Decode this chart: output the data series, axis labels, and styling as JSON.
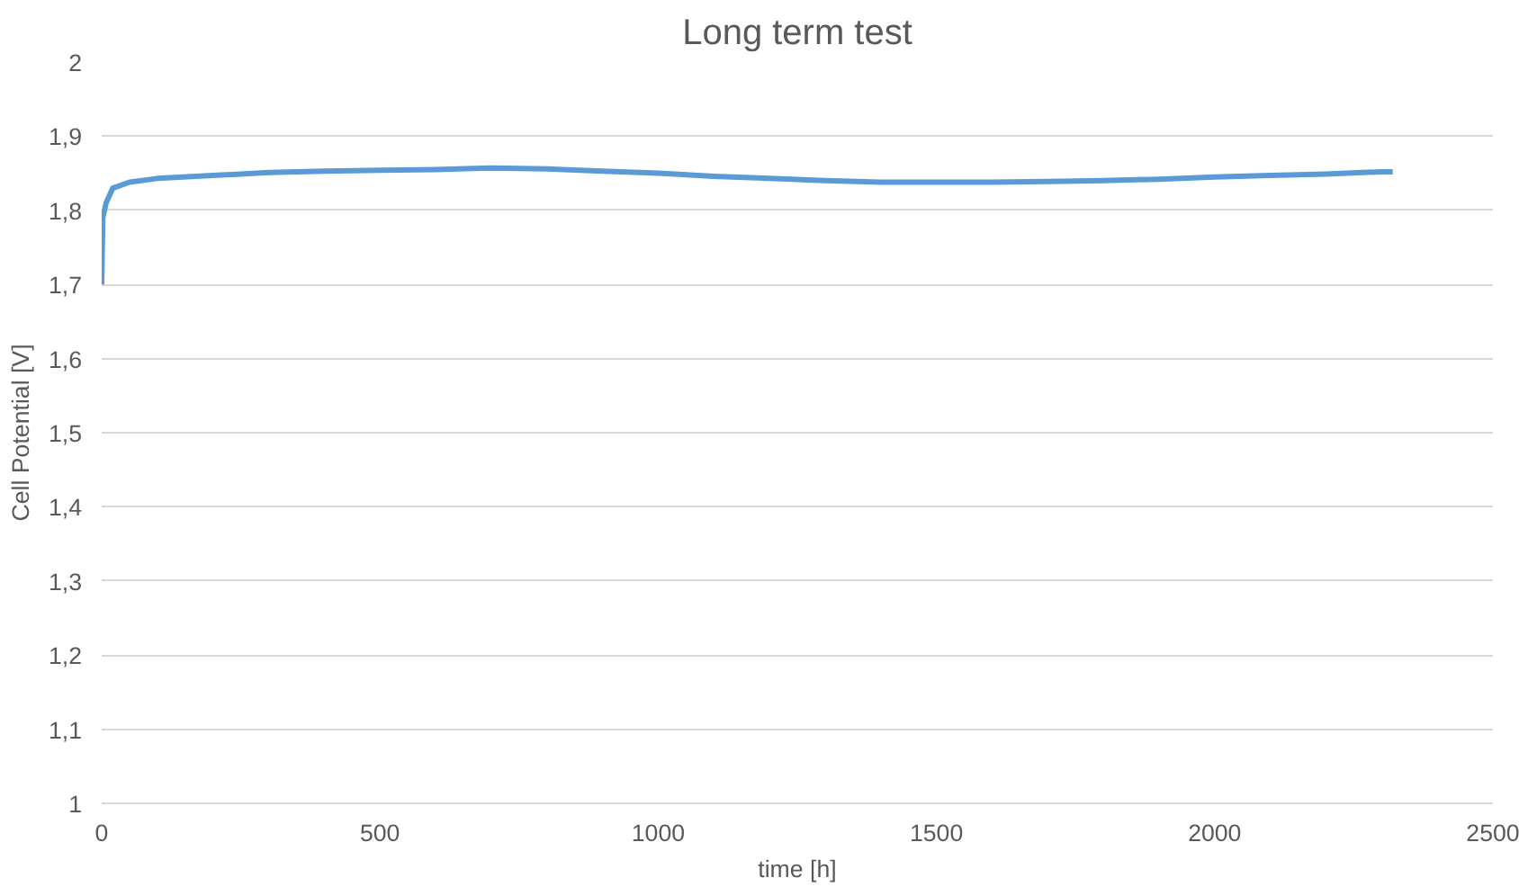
{
  "chart_data": {
    "type": "line",
    "title": "Long term test",
    "xlabel": "time [h]",
    "ylabel": "Cell Potential [V]",
    "series": [
      {
        "color": "#5b9bd5",
        "x": [
          0,
          2,
          8,
          20,
          50,
          100,
          200,
          300,
          400,
          500,
          600,
          700,
          800,
          900,
          1000,
          1100,
          1200,
          1300,
          1400,
          1500,
          1600,
          1700,
          1800,
          1900,
          2000,
          2100,
          2200,
          2300,
          2320
        ],
        "values": [
          1.7,
          1.79,
          1.81,
          1.83,
          1.838,
          1.843,
          1.847,
          1.851,
          1.853,
          1.854,
          1.855,
          1.857,
          1.856,
          1.853,
          1.85,
          1.846,
          1.843,
          1.84,
          1.838,
          1.838,
          1.838,
          1.839,
          1.84,
          1.842,
          1.845,
          1.847,
          1.849,
          1.852,
          1.852
        ]
      }
    ],
    "xlim": [
      0,
      2500
    ],
    "xticks": [
      0,
      500,
      1000,
      1500,
      2000,
      2500
    ],
    "ylim": [
      1,
      2
    ],
    "yticks": [
      1,
      {
        "value": 1.1,
        "label": "1,1"
      },
      {
        "value": 1.2,
        "label": "1,2"
      },
      {
        "value": 1.3,
        "label": "1,3"
      },
      {
        "value": 1.4,
        "label": "1,4"
      },
      {
        "value": 1.5,
        "label": "1,5"
      },
      {
        "value": 1.6,
        "label": "1,6"
      },
      {
        "value": 1.7,
        "label": "1,7"
      },
      {
        "value": 1.8,
        "label": "1,8"
      },
      {
        "value": 1.9,
        "label": "1,9"
      },
      2
    ],
    "grid": "y",
    "marker": "none",
    "line_style": "solid"
  }
}
